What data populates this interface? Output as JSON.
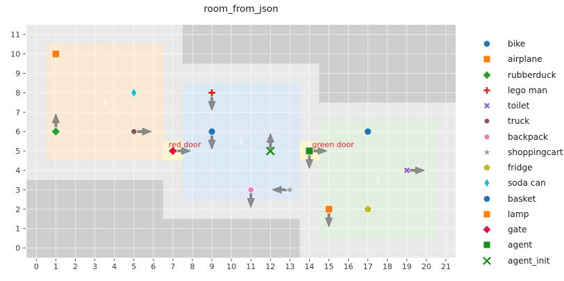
{
  "figure": {
    "title": "room_from_json"
  },
  "chart_data": {
    "type": "scatter",
    "title": "room_from_json",
    "xlabel": "",
    "ylabel": "",
    "xlim": [
      -0.5,
      21.5
    ],
    "ylim": [
      -0.5,
      11.5
    ],
    "xticks": [
      0,
      1,
      2,
      3,
      4,
      5,
      6,
      7,
      8,
      9,
      10,
      11,
      12,
      13,
      14,
      15,
      16,
      17,
      18,
      19,
      20,
      21
    ],
    "yticks": [
      0,
      1,
      2,
      3,
      4,
      5,
      6,
      7,
      8,
      9,
      10,
      11
    ],
    "grid": true,
    "legend_position": "right-outside",
    "style": {
      "floor": "#e9e9e9",
      "wall": "#cecece",
      "grid": "rgba(255,255,255,0.6)",
      "door_cell": "#fdf3cd",
      "door_text": "#d8242c",
      "room_label": "#ffffff",
      "arrow_fill": "#8d8d8d",
      "arrow_edge": "#6f6f6f",
      "tick_color": "#3a3a3a",
      "title_color": "#1a1a1a",
      "marker_edge": "rgba(255,255,255,0.9)"
    },
    "walls": [
      {
        "x": -0.5,
        "y": -0.5,
        "w": 7,
        "h": 4
      },
      {
        "x": 6.5,
        "y": -0.5,
        "w": 7,
        "h": 2
      },
      {
        "x": 7.5,
        "y": 9.5,
        "w": 7,
        "h": 2
      },
      {
        "x": 14.5,
        "y": 7.5,
        "w": 7,
        "h": 4
      }
    ],
    "rooms": [
      {
        "id": "3",
        "x": 0.5,
        "y": 4.5,
        "w": 6,
        "h": 6,
        "color": "#fbe8d2",
        "label_x": 3.5,
        "label_y": 7.5
      },
      {
        "id": "1",
        "x": 7.5,
        "y": 2.5,
        "w": 6,
        "h": 6,
        "color": "#dce8f5",
        "label_x": 10.5,
        "label_y": 5.5
      },
      {
        "id": "2",
        "x": 14.5,
        "y": 0.5,
        "w": 6,
        "h": 6,
        "color": "#e3efde",
        "label_x": 17.5,
        "label_y": 3.5
      }
    ],
    "doors": [
      {
        "label": "red door",
        "x": 7,
        "y": 5,
        "facing": "right",
        "label_dx": -6
      },
      {
        "label": "green door",
        "x": 14,
        "y": 5,
        "facing": "right",
        "label_dx": 4
      }
    ],
    "objects": [
      {
        "name": "bike",
        "marker": "circle",
        "color": "#2077b4",
        "x": 9,
        "y": 6,
        "facing": "down"
      },
      {
        "name": "airplane",
        "marker": "square",
        "color": "#ff7f0e",
        "x": 1,
        "y": 10,
        "facing": null
      },
      {
        "name": "rubberduck",
        "marker": "diamond",
        "color": "#2ca02c",
        "x": 1,
        "y": 6,
        "facing": "up"
      },
      {
        "name": "lego man",
        "marker": "plus",
        "color": "#d62728",
        "x": 9,
        "y": 8,
        "facing": "down"
      },
      {
        "name": "toilet",
        "marker": "xbold",
        "color": "#9467bd",
        "x": 19,
        "y": 4,
        "facing": "right"
      },
      {
        "name": "truck",
        "marker": "dot",
        "color": "#8c564b",
        "x": 5,
        "y": 6,
        "facing": "right"
      },
      {
        "name": "backpack",
        "marker": "hex",
        "color": "#e784c3",
        "x": 11,
        "y": 3,
        "facing": "down"
      },
      {
        "name": "shoppingcart",
        "marker": "star",
        "color": "#9e9e9e",
        "x": 13,
        "y": 3,
        "facing": "left"
      },
      {
        "name": "fridge",
        "marker": "pentagon",
        "color": "#bcbd22",
        "x": 17,
        "y": 2,
        "facing": null
      },
      {
        "name": "soda can",
        "marker": "thindiamond",
        "color": "#17becf",
        "x": 5,
        "y": 8,
        "facing": null
      },
      {
        "name": "basket",
        "marker": "circle",
        "color": "#2077b4",
        "x": 17,
        "y": 6,
        "facing": null
      },
      {
        "name": "lamp",
        "marker": "square",
        "color": "#ff7f0e",
        "x": 15,
        "y": 2,
        "facing": "down"
      },
      {
        "name": "gate",
        "marker": "diamond",
        "color": "#dc143c",
        "x": 7,
        "y": 5,
        "facing": null
      },
      {
        "name": "agent",
        "marker": "square",
        "color": "#1d8b1d",
        "x": 14,
        "y": 5,
        "facing": "down"
      },
      {
        "name": "agent_init",
        "marker": "xthin",
        "color": "#1d8b1d",
        "x": 12,
        "y": 5,
        "facing": "up"
      }
    ]
  }
}
